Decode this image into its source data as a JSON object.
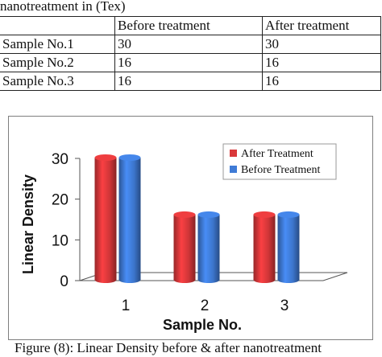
{
  "table": {
    "caption": "nanotreatment in (Tex)",
    "headers": [
      "",
      "Before treatment",
      "After treatment"
    ],
    "rows": [
      [
        "Sample No.1",
        "30",
        "30"
      ],
      [
        "Sample No.2",
        "16",
        "16"
      ],
      [
        "Sample No.3",
        "16",
        "16"
      ]
    ]
  },
  "chart_data": {
    "type": "bar",
    "categories": [
      "1",
      "2",
      "3"
    ],
    "series": [
      {
        "name": "After Treatment",
        "values": [
          30,
          16,
          16
        ],
        "color": "#d9383a"
      },
      {
        "name": "Before Treatment",
        "values": [
          30,
          16,
          16
        ],
        "color": "#3f7bd6"
      }
    ],
    "xlabel": "Sample No.",
    "ylabel": "Linear Density",
    "ylim": [
      0,
      30
    ],
    "yticks": [
      "0",
      "10",
      "20",
      "30"
    ],
    "grid": false,
    "legend": "top-right"
  },
  "figure_caption": "Figure (8): Linear Density before & after nanotreatment"
}
